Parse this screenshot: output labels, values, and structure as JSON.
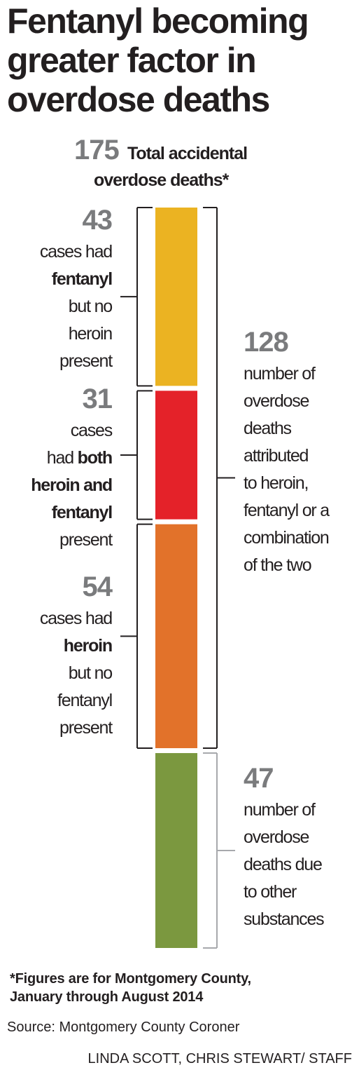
{
  "title_lines": [
    "Fentanyl becoming",
    "greater factor in",
    "overdose deaths"
  ],
  "total": {
    "value": "175",
    "label_lines": [
      "Total accidental",
      "overdose deaths*"
    ]
  },
  "left_groups": [
    {
      "value": "43",
      "lines": [
        {
          "text": "cases had",
          "bold": ""
        },
        {
          "text": "",
          "bold": "fentanyl"
        },
        {
          "text": "but no",
          "bold": ""
        },
        {
          "text": "heroin",
          "bold": ""
        },
        {
          "text": "present",
          "bold": ""
        }
      ]
    },
    {
      "value": "31",
      "lines": [
        {
          "text": "cases",
          "bold": ""
        },
        {
          "text": "had ",
          "bold": "both"
        },
        {
          "text": "",
          "bold": "heroin and"
        },
        {
          "text": "",
          "bold": "fentanyl"
        },
        {
          "text": "present",
          "bold": ""
        }
      ]
    },
    {
      "value": "54",
      "lines": [
        {
          "text": "cases had",
          "bold": ""
        },
        {
          "text": "",
          "bold": "heroin"
        },
        {
          "text": "but no",
          "bold": ""
        },
        {
          "text": "fentanyl",
          "bold": ""
        },
        {
          "text": "present",
          "bold": ""
        }
      ]
    }
  ],
  "right_groups": [
    {
      "value": "128",
      "lines": [
        "number of",
        "overdose",
        "deaths",
        "attributed",
        "to heroin,",
        "fentanyl or a",
        "combination",
        "of the two"
      ]
    },
    {
      "value": "47",
      "lines": [
        "number of",
        "overdose",
        "deaths due",
        "to other",
        "substances"
      ]
    }
  ],
  "footnote_lines": [
    "*Figures are for Montgomery County,",
    "January through August 2014"
  ],
  "source": "Source: Montgomery County Coroner",
  "credit": "LINDA SCOTT, CHRIS STEWART/ STAFF",
  "colors": {
    "fentanyl_only": "#ebb322",
    "both": "#e42229",
    "heroin_only": "#e2722a",
    "other": "#7b983f",
    "bracket_dark": "#231f20",
    "bracket_gray": "#a7a9ac"
  },
  "chart_data": {
    "type": "bar",
    "orientation": "stacked-vertical",
    "categories": [
      "fentanyl but no heroin",
      "both heroin and fentanyl",
      "heroin but no fentanyl",
      "other substances"
    ],
    "values": [
      43,
      31,
      54,
      47
    ],
    "total": 175
  }
}
